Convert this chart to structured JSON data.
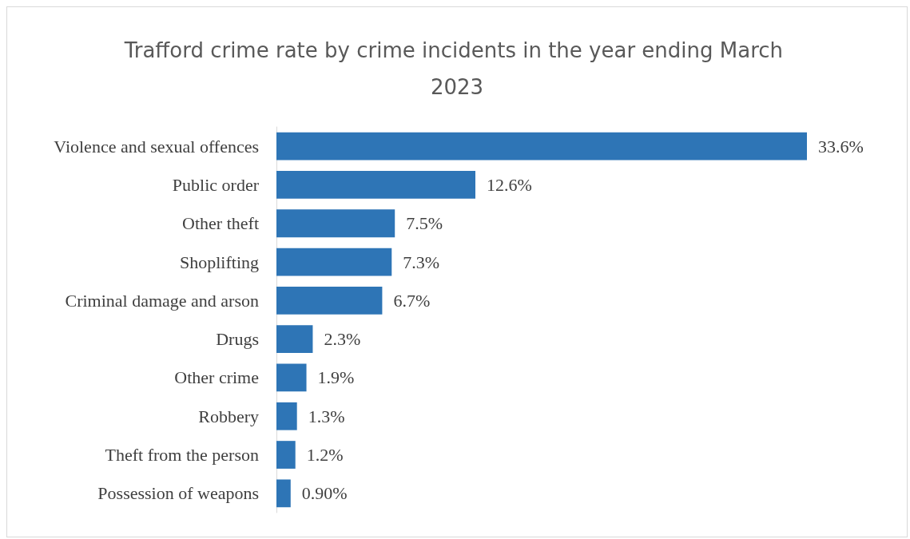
{
  "chart_data": {
    "type": "bar",
    "orientation": "horizontal",
    "title": "Trafford crime rate by crime incidents in the year ending March 2023",
    "categories": [
      "Violence and sexual offences",
      "Public order",
      "Other theft",
      "Shoplifting",
      "Criminal damage and arson",
      "Drugs",
      "Other crime",
      "Robbery",
      "Theft from the person",
      "Possession of weapons"
    ],
    "values": [
      33.6,
      12.6,
      7.5,
      7.3,
      6.7,
      2.3,
      1.9,
      1.3,
      1.2,
      0.9
    ],
    "value_labels": [
      "33.6%",
      "12.6%",
      "7.5%",
      "7.3%",
      "6.7%",
      "2.3%",
      "1.9%",
      "1.3%",
      "1.2%",
      "0.90%"
    ],
    "color": "#2e75b6"
  }
}
